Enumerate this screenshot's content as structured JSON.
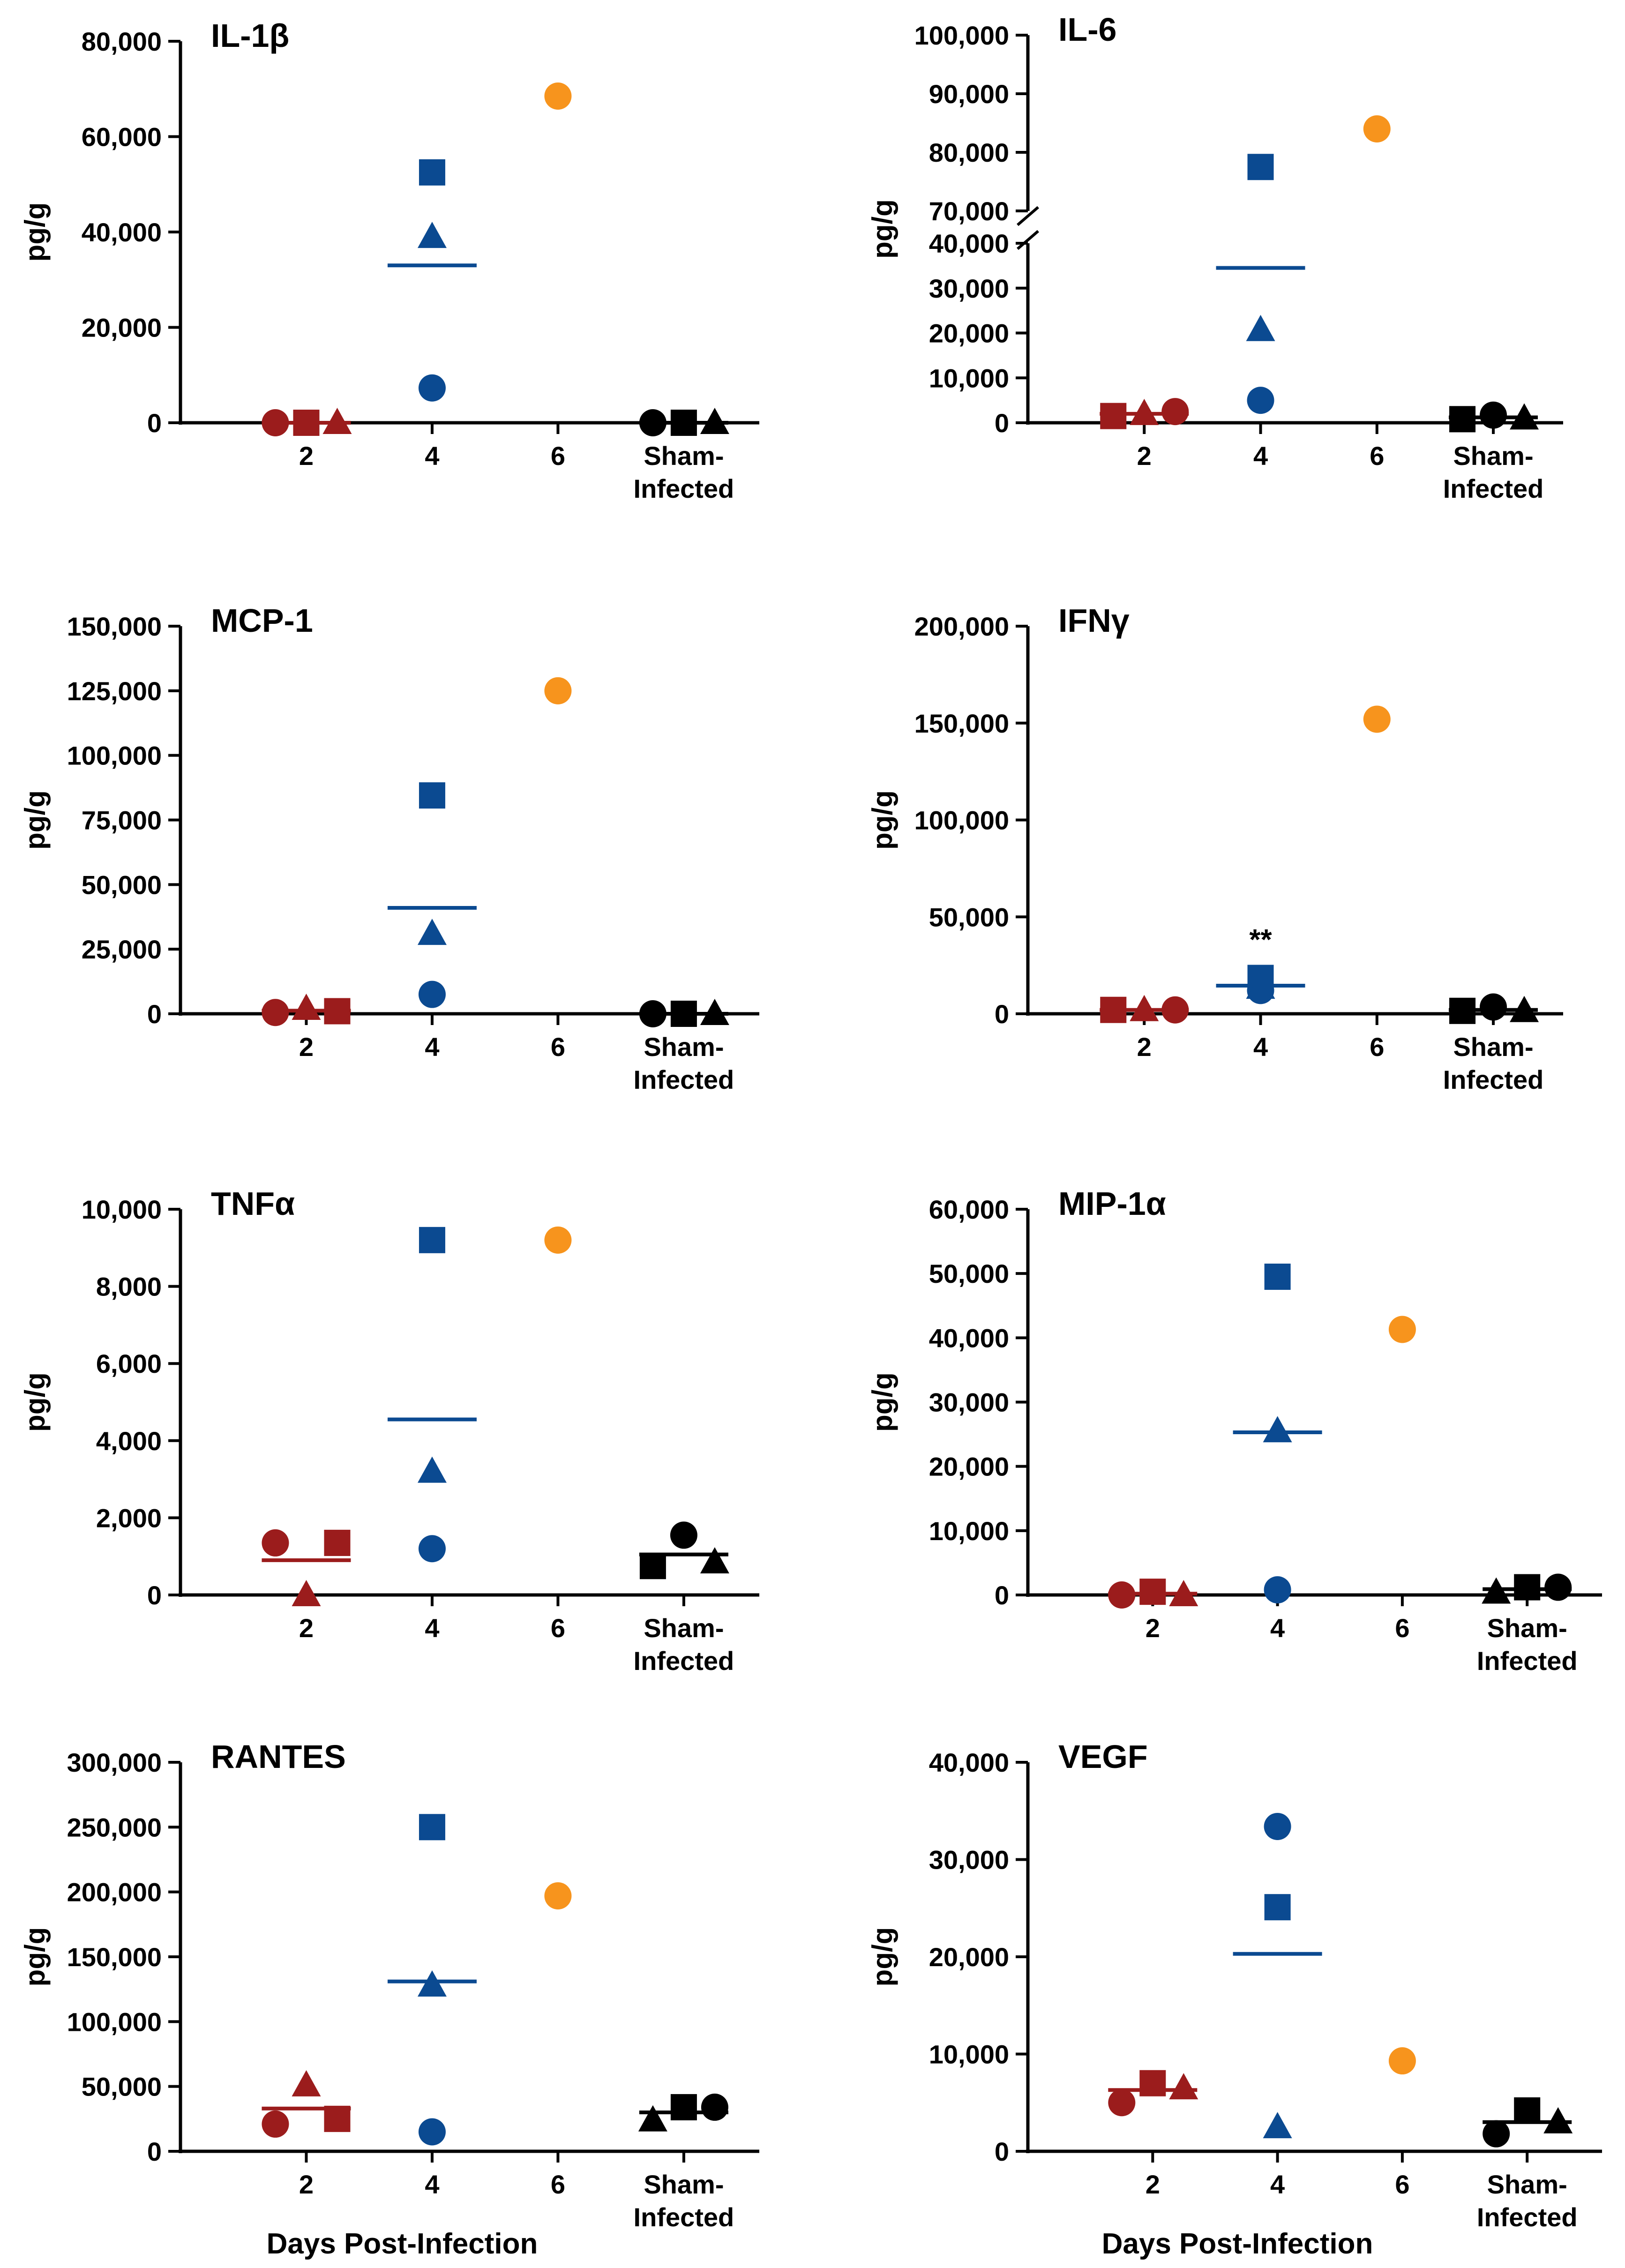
{
  "figure": {
    "xlabel": "Days Post-Infection",
    "groups": [
      "2",
      "4",
      "6",
      "Sham-Infected"
    ],
    "colors": {
      "day2": "#9b1c1c",
      "day4": "#0b4a91",
      "day6": "#f7941d",
      "sham": "#000000"
    }
  },
  "chart_data": [
    {
      "type": "scatter",
      "title": "IL-1β",
      "ylabel": "pg/g",
      "ylim": [
        0,
        80000
      ],
      "yticks": [
        0,
        20000,
        40000,
        60000,
        80000
      ],
      "ytick_labels": [
        "0",
        "20,000",
        "40,000",
        "60,000",
        "80,000"
      ],
      "categories": [
        "2",
        "4",
        "6",
        "Sham-Infected"
      ],
      "points": [
        {
          "group": "2",
          "marker": "circle",
          "value": 0
        },
        {
          "group": "2",
          "marker": "square",
          "value": 0
        },
        {
          "group": "2",
          "marker": "triangle",
          "value": 0
        },
        {
          "group": "4",
          "marker": "square",
          "value": 52500
        },
        {
          "group": "4",
          "marker": "triangle",
          "value": 39000
        },
        {
          "group": "4",
          "marker": "circle",
          "value": 7300
        },
        {
          "group": "6",
          "marker": "circle",
          "value": 68500
        },
        {
          "group": "Sham-Infected",
          "marker": "circle",
          "value": 0
        },
        {
          "group": "Sham-Infected",
          "marker": "square",
          "value": 0
        },
        {
          "group": "Sham-Infected",
          "marker": "triangle",
          "value": 0
        }
      ],
      "means": [
        {
          "group": "2",
          "value": 0
        },
        {
          "group": "4",
          "value": 33000
        },
        {
          "group": "Sham-Infected",
          "value": 0
        }
      ]
    },
    {
      "type": "scatter",
      "title": "IL-6",
      "ylabel": "pg/g",
      "axis_break": true,
      "ylim": [
        0,
        40000
      ],
      "upper_ylim": [
        70000,
        100000
      ],
      "yticks": [
        0,
        10000,
        20000,
        30000,
        40000
      ],
      "ytick_labels": [
        "0",
        "10,000",
        "20,000",
        "30,000",
        "40,000"
      ],
      "upper_yticks": [
        70000,
        80000,
        90000,
        100000
      ],
      "upper_ytick_labels": [
        "70,000",
        "80,000",
        "90,000",
        "100,000"
      ],
      "categories": [
        "2",
        "4",
        "6",
        "Sham-Infected"
      ],
      "points": [
        {
          "group": "2",
          "marker": "square",
          "value": 1500
        },
        {
          "group": "2",
          "marker": "triangle",
          "value": 2000
        },
        {
          "group": "2",
          "marker": "circle",
          "value": 2500
        },
        {
          "group": "4",
          "marker": "square",
          "value": 77500
        },
        {
          "group": "4",
          "marker": "triangle",
          "value": 20700
        },
        {
          "group": "4",
          "marker": "circle",
          "value": 5000
        },
        {
          "group": "6",
          "marker": "circle",
          "value": 84000
        },
        {
          "group": "Sham-Infected",
          "marker": "square",
          "value": 800
        },
        {
          "group": "Sham-Infected",
          "marker": "circle",
          "value": 1700
        },
        {
          "group": "Sham-Infected",
          "marker": "triangle",
          "value": 1000
        }
      ],
      "means": [
        {
          "group": "2",
          "value": 2000
        },
        {
          "group": "4",
          "value": 34500
        },
        {
          "group": "Sham-Infected",
          "value": 1200
        }
      ]
    },
    {
      "type": "scatter",
      "title": "MCP-1",
      "ylabel": "pg/g",
      "ylim": [
        0,
        150000
      ],
      "yticks": [
        0,
        25000,
        50000,
        75000,
        100000,
        125000,
        150000
      ],
      "ytick_labels": [
        "0",
        "25,000",
        "50,000",
        "75,000",
        "100,000",
        "125,000",
        "150,000"
      ],
      "categories": [
        "2",
        "4",
        "6",
        "Sham-Infected"
      ],
      "points": [
        {
          "group": "2",
          "marker": "circle",
          "value": 500
        },
        {
          "group": "2",
          "marker": "triangle",
          "value": 2000
        },
        {
          "group": "2",
          "marker": "square",
          "value": 1000
        },
        {
          "group": "4",
          "marker": "square",
          "value": 84500
        },
        {
          "group": "4",
          "marker": "triangle",
          "value": 31000
        },
        {
          "group": "4",
          "marker": "circle",
          "value": 7500
        },
        {
          "group": "6",
          "marker": "circle",
          "value": 125000
        },
        {
          "group": "Sham-Infected",
          "marker": "circle",
          "value": 0
        },
        {
          "group": "Sham-Infected",
          "marker": "square",
          "value": 0
        },
        {
          "group": "Sham-Infected",
          "marker": "triangle",
          "value": 0
        }
      ],
      "means": [
        {
          "group": "2",
          "value": 1200
        },
        {
          "group": "4",
          "value": 41000
        },
        {
          "group": "Sham-Infected",
          "value": 0
        }
      ]
    },
    {
      "type": "scatter",
      "title": "IFNγ",
      "ylabel": "pg/g",
      "ylim": [
        0,
        200000
      ],
      "yticks": [
        0,
        50000,
        100000,
        150000,
        200000
      ],
      "ytick_labels": [
        "0",
        "50,000",
        "100,000",
        "150,000",
        "200,000"
      ],
      "categories": [
        "2",
        "4",
        "6",
        "Sham-Infected"
      ],
      "annotation": {
        "group": "4",
        "text": "**",
        "value": 38000
      },
      "points": [
        {
          "group": "2",
          "marker": "square",
          "value": 2000
        },
        {
          "group": "2",
          "marker": "triangle",
          "value": 2000
        },
        {
          "group": "2",
          "marker": "circle",
          "value": 2000
        },
        {
          "group": "4",
          "marker": "circle",
          "value": 12000
        },
        {
          "group": "4",
          "marker": "square",
          "value": 18500
        },
        {
          "group": "4",
          "marker": "triangle",
          "value": 13500
        },
        {
          "group": "6",
          "marker": "circle",
          "value": 152000
        },
        {
          "group": "Sham-Infected",
          "marker": "square",
          "value": 1500
        },
        {
          "group": "Sham-Infected",
          "marker": "circle",
          "value": 3500
        },
        {
          "group": "Sham-Infected",
          "marker": "triangle",
          "value": 1500
        }
      ],
      "means": [
        {
          "group": "2",
          "value": 2000
        },
        {
          "group": "4",
          "value": 14500
        },
        {
          "group": "Sham-Infected",
          "value": 2000
        }
      ]
    },
    {
      "type": "scatter",
      "title": "TNFα",
      "ylabel": "pg/g",
      "ylim": [
        0,
        10000
      ],
      "yticks": [
        0,
        2000,
        4000,
        6000,
        8000,
        10000
      ],
      "ytick_labels": [
        "0",
        "2,000",
        "4,000",
        "6,000",
        "8,000",
        "10,000"
      ],
      "categories": [
        "2",
        "4",
        "6",
        "Sham-Infected"
      ],
      "points": [
        {
          "group": "2",
          "marker": "circle",
          "value": 1350
        },
        {
          "group": "2",
          "marker": "triangle",
          "value": 0
        },
        {
          "group": "2",
          "marker": "square",
          "value": 1350
        },
        {
          "group": "4",
          "marker": "square",
          "value": 9200
        },
        {
          "group": "4",
          "marker": "triangle",
          "value": 3200
        },
        {
          "group": "4",
          "marker": "circle",
          "value": 1200
        },
        {
          "group": "6",
          "marker": "circle",
          "value": 9200
        },
        {
          "group": "Sham-Infected",
          "marker": "square",
          "value": 750
        },
        {
          "group": "Sham-Infected",
          "marker": "circle",
          "value": 1550
        },
        {
          "group": "Sham-Infected",
          "marker": "triangle",
          "value": 850
        }
      ],
      "means": [
        {
          "group": "2",
          "value": 900
        },
        {
          "group": "4",
          "value": 4550
        },
        {
          "group": "Sham-Infected",
          "value": 1050
        }
      ]
    },
    {
      "type": "scatter",
      "title": "MIP-1α",
      "ylabel": "pg/g",
      "ylim": [
        0,
        60000
      ],
      "yticks": [
        0,
        10000,
        20000,
        30000,
        40000,
        50000,
        60000
      ],
      "ytick_labels": [
        "0",
        "10,000",
        "20,000",
        "30,000",
        "40,000",
        "50,000",
        "60,000"
      ],
      "categories": [
        "2",
        "4",
        "6",
        "Sham-Infected"
      ],
      "points": [
        {
          "group": "2",
          "marker": "circle",
          "value": 0
        },
        {
          "group": "2",
          "marker": "square",
          "value": 500
        },
        {
          "group": "2",
          "marker": "triangle",
          "value": 0
        },
        {
          "group": "4",
          "marker": "square",
          "value": 49500
        },
        {
          "group": "4",
          "marker": "triangle",
          "value": 25500
        },
        {
          "group": "4",
          "marker": "circle",
          "value": 800
        },
        {
          "group": "6",
          "marker": "circle",
          "value": 41300
        },
        {
          "group": "Sham-Infected",
          "marker": "triangle",
          "value": 400
        },
        {
          "group": "Sham-Infected",
          "marker": "square",
          "value": 1200
        },
        {
          "group": "Sham-Infected",
          "marker": "circle",
          "value": 1200
        }
      ],
      "means": [
        {
          "group": "2",
          "value": 200
        },
        {
          "group": "4",
          "value": 25300
        },
        {
          "group": "Sham-Infected",
          "value": 900
        }
      ]
    },
    {
      "type": "scatter",
      "title": "RANTES",
      "ylabel": "pg/g",
      "ylim": [
        0,
        300000
      ],
      "yticks": [
        0,
        50000,
        100000,
        150000,
        200000,
        250000,
        300000
      ],
      "ytick_labels": [
        "0",
        "50,000",
        "100,000",
        "150,000",
        "200,000",
        "250,000",
        "300,000"
      ],
      "categories": [
        "2",
        "4",
        "6",
        "Sham-Infected"
      ],
      "points": [
        {
          "group": "2",
          "marker": "circle",
          "value": 21000
        },
        {
          "group": "2",
          "marker": "triangle",
          "value": 51000
        },
        {
          "group": "2",
          "marker": "square",
          "value": 25000
        },
        {
          "group": "4",
          "marker": "square",
          "value": 250000
        },
        {
          "group": "4",
          "marker": "triangle",
          "value": 128000
        },
        {
          "group": "4",
          "marker": "circle",
          "value": 15000
        },
        {
          "group": "6",
          "marker": "circle",
          "value": 197000
        },
        {
          "group": "Sham-Infected",
          "marker": "triangle",
          "value": 24000
        },
        {
          "group": "Sham-Infected",
          "marker": "square",
          "value": 34000
        },
        {
          "group": "Sham-Infected",
          "marker": "circle",
          "value": 34000
        }
      ],
      "means": [
        {
          "group": "2",
          "value": 33000
        },
        {
          "group": "4",
          "value": 131000
        },
        {
          "group": "Sham-Infected",
          "value": 30000
        }
      ]
    },
    {
      "type": "scatter",
      "title": "VEGF",
      "ylabel": "pg/g",
      "ylim": [
        0,
        40000
      ],
      "yticks": [
        0,
        10000,
        20000,
        30000,
        40000
      ],
      "ytick_labels": [
        "0",
        "10,000",
        "20,000",
        "30,000",
        "40,000"
      ],
      "categories": [
        "2",
        "4",
        "6",
        "Sham-Infected"
      ],
      "points": [
        {
          "group": "2",
          "marker": "circle",
          "value": 5000
        },
        {
          "group": "2",
          "marker": "square",
          "value": 7000
        },
        {
          "group": "2",
          "marker": "triangle",
          "value": 6500
        },
        {
          "group": "4",
          "marker": "circle",
          "value": 33400
        },
        {
          "group": "4",
          "marker": "square",
          "value": 25100
        },
        {
          "group": "4",
          "marker": "triangle",
          "value": 2500
        },
        {
          "group": "6",
          "marker": "circle",
          "value": 9300
        },
        {
          "group": "Sham-Infected",
          "marker": "circle",
          "value": 1800
        },
        {
          "group": "Sham-Infected",
          "marker": "square",
          "value": 4200
        },
        {
          "group": "Sham-Infected",
          "marker": "triangle",
          "value": 3000
        }
      ],
      "means": [
        {
          "group": "2",
          "value": 6300
        },
        {
          "group": "4",
          "value": 20300
        },
        {
          "group": "Sham-Infected",
          "value": 3000
        }
      ]
    }
  ]
}
